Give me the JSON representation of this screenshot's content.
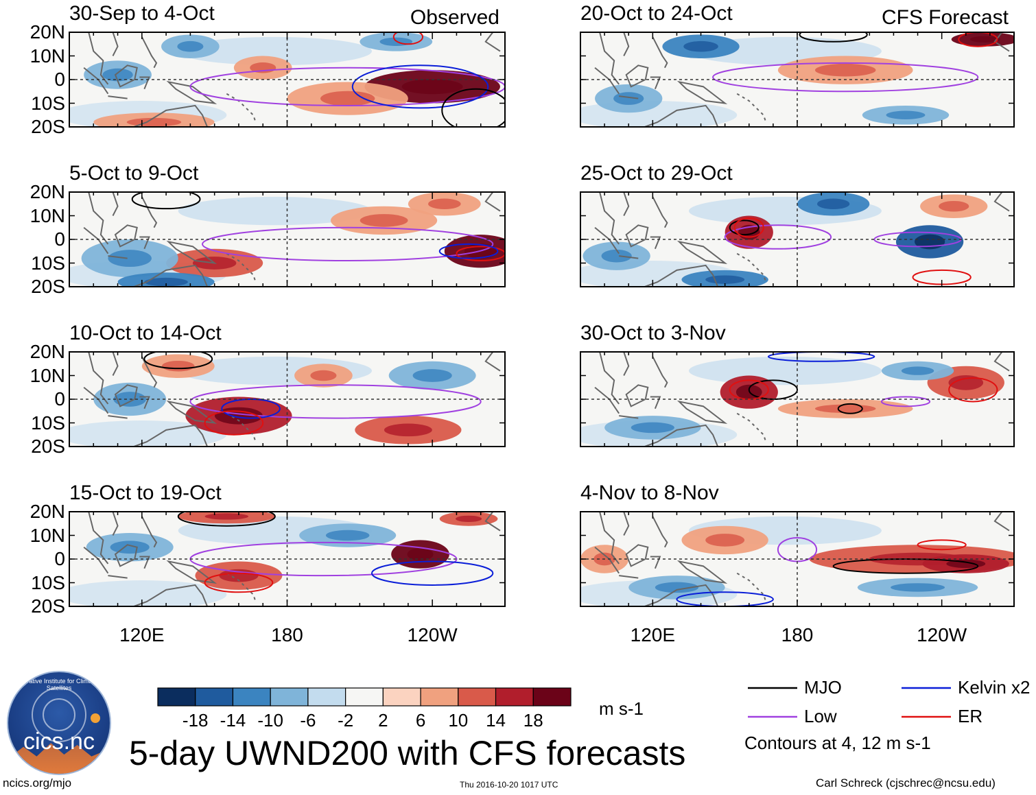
{
  "figure": {
    "main_title": "5-day UWND200 with CFS forecasts",
    "observed_tag": "Observed",
    "forecast_tag": "CFS Forecast",
    "url": "ncics.org/mjo",
    "timestamp": "Thu 2016-10-20 1017 UTC",
    "author": "Carl Schreck (cjschrec@ncsu.edu)",
    "logo_text": "cics.nc",
    "logo_arc_text": "Cooperative Institute for Climate and Satellites"
  },
  "chart_data": {
    "type": "heatmap",
    "variable": "UWND200",
    "units": "m s-1",
    "yticks": [
      "20N",
      "10N",
      "0",
      "10S",
      "20S"
    ],
    "xticks": [
      "120E",
      "180",
      "120W"
    ],
    "lat_range": [
      -20,
      20
    ],
    "lon_range": [
      90,
      270
    ],
    "colorbar": {
      "levels": [
        -18,
        -14,
        -10,
        -6,
        -2,
        2,
        6,
        10,
        14,
        18
      ],
      "labels": [
        "-18",
        "-14",
        "-10",
        "-6",
        "-2",
        "2",
        "6",
        "10",
        "14",
        "18"
      ],
      "colors": [
        "#0b2d5e",
        "#1f5b9e",
        "#3b84c0",
        "#7fb4d9",
        "#c3dcee",
        "#f6f6f4",
        "#fbd3c0",
        "#f0a17f",
        "#d95a4a",
        "#b11e2c",
        "#6b0318"
      ],
      "unit": "m s-1"
    },
    "contour_note": "Contours at 4, 12 m s-1",
    "legend": [
      {
        "label": "MJO",
        "color": "#000000"
      },
      {
        "label": "Kelvin x2",
        "color": "#0a1ed8"
      },
      {
        "label": "Low",
        "color": "#a040e0"
      },
      {
        "label": "ER",
        "color": "#e01010"
      }
    ],
    "panels": [
      {
        "title": "30-Sep to 4-Oct",
        "tag": "Observed",
        "features": [
          {
            "lon": 240,
            "lat": -3,
            "rx": 28,
            "ry": 7,
            "level": 18
          },
          {
            "lon": 205,
            "lat": -8,
            "rx": 25,
            "ry": 7,
            "level": 6
          },
          {
            "lon": 140,
            "lat": 14,
            "rx": 12,
            "ry": 5,
            "level": -6
          },
          {
            "lon": 110,
            "lat": 2,
            "rx": 14,
            "ry": 6,
            "level": -6
          },
          {
            "lon": 125,
            "lat": -18,
            "rx": 25,
            "ry": 4,
            "level": 6
          },
          {
            "lon": 170,
            "lat": 5,
            "rx": 12,
            "ry": 5,
            "level": 6
          },
          {
            "lon": 225,
            "lat": 16,
            "rx": 15,
            "ry": 4,
            "level": -6
          }
        ],
        "contours": [
          {
            "type": "Low",
            "lon": 205,
            "lat": -3,
            "rx": 65,
            "ry": 8
          },
          {
            "type": "Kelvin",
            "lon": 235,
            "lat": -3,
            "rx": 28,
            "ry": 9
          },
          {
            "type": "MJO",
            "lon": 258,
            "lat": -13,
            "rx": 14,
            "ry": 9
          },
          {
            "type": "ER",
            "lon": 230,
            "lat": 18,
            "rx": 6,
            "ry": 3
          }
        ]
      },
      {
        "title": "5-Oct to 9-Oct",
        "features": [
          {
            "lon": 260,
            "lat": -5,
            "rx": 15,
            "ry": 7,
            "level": 18
          },
          {
            "lon": 150,
            "lat": -10,
            "rx": 20,
            "ry": 6,
            "level": 10
          },
          {
            "lon": 115,
            "lat": -8,
            "rx": 20,
            "ry": 8,
            "level": -6
          },
          {
            "lon": 220,
            "lat": 8,
            "rx": 22,
            "ry": 6,
            "level": 6
          },
          {
            "lon": 245,
            "lat": 15,
            "rx": 15,
            "ry": 5,
            "level": 6
          },
          {
            "lon": 130,
            "lat": -18,
            "rx": 20,
            "ry": 4,
            "level": -10
          }
        ],
        "contours": [
          {
            "type": "Low",
            "lon": 205,
            "lat": -2,
            "rx": 60,
            "ry": 7
          },
          {
            "type": "MJO",
            "lon": 130,
            "lat": 17,
            "rx": 14,
            "ry": 4
          },
          {
            "type": "ER",
            "lon": 260,
            "lat": -6,
            "rx": 10,
            "ry": 3
          },
          {
            "type": "Kelvin",
            "lon": 255,
            "lat": -5,
            "rx": 12,
            "ry": 3
          }
        ]
      },
      {
        "title": "10-Oct to 14-Oct",
        "features": [
          {
            "lon": 160,
            "lat": -7,
            "rx": 22,
            "ry": 8,
            "level": 14
          },
          {
            "lon": 230,
            "lat": -13,
            "rx": 22,
            "ry": 6,
            "level": 10
          },
          {
            "lon": 135,
            "lat": 14,
            "rx": 15,
            "ry": 5,
            "level": 6
          },
          {
            "lon": 115,
            "lat": 0,
            "rx": 15,
            "ry": 7,
            "level": -6
          },
          {
            "lon": 240,
            "lat": 10,
            "rx": 18,
            "ry": 6,
            "level": -6
          },
          {
            "lon": 195,
            "lat": 10,
            "rx": 12,
            "ry": 5,
            "level": 6
          }
        ],
        "contours": [
          {
            "type": "Low",
            "lon": 200,
            "lat": -1,
            "rx": 60,
            "ry": 7
          },
          {
            "type": "Kelvin",
            "lon": 165,
            "lat": -4,
            "rx": 12,
            "ry": 4
          },
          {
            "type": "MJO",
            "lon": 135,
            "lat": 17,
            "rx": 14,
            "ry": 4
          },
          {
            "type": "ER",
            "lon": 158,
            "lat": -10,
            "rx": 12,
            "ry": 5
          }
        ]
      },
      {
        "title": "15-Oct to 19-Oct",
        "features": [
          {
            "lon": 235,
            "lat": 2,
            "rx": 12,
            "ry": 6,
            "level": 18
          },
          {
            "lon": 160,
            "lat": -7,
            "rx": 18,
            "ry": 6,
            "level": 10
          },
          {
            "lon": 155,
            "lat": 18,
            "rx": 20,
            "ry": 3,
            "level": 10
          },
          {
            "lon": 255,
            "lat": 17,
            "rx": 12,
            "ry": 3,
            "level": 10
          },
          {
            "lon": 115,
            "lat": 5,
            "rx": 18,
            "ry": 6,
            "level": -6
          },
          {
            "lon": 205,
            "lat": 10,
            "rx": 20,
            "ry": 5,
            "level": -6
          }
        ],
        "contours": [
          {
            "type": "Low",
            "lon": 195,
            "lat": 0,
            "rx": 55,
            "ry": 7
          },
          {
            "type": "MJO",
            "lon": 155,
            "lat": 18,
            "rx": 20,
            "ry": 4
          },
          {
            "type": "ER",
            "lon": 160,
            "lat": -10,
            "rx": 14,
            "ry": 4
          },
          {
            "type": "Kelvin",
            "lon": 240,
            "lat": -6,
            "rx": 25,
            "ry": 5
          }
        ]
      },
      {
        "title": "20-Oct to 24-Oct",
        "tag": "CFS Forecast",
        "features": [
          {
            "lon": 140,
            "lat": 14,
            "rx": 16,
            "ry": 5,
            "level": -10
          },
          {
            "lon": 258,
            "lat": 17,
            "rx": 14,
            "ry": 3,
            "level": 18
          },
          {
            "lon": 200,
            "lat": 4,
            "rx": 28,
            "ry": 6,
            "level": 6
          },
          {
            "lon": 110,
            "lat": -8,
            "rx": 14,
            "ry": 6,
            "level": -6
          },
          {
            "lon": 225,
            "lat": -15,
            "rx": 18,
            "ry": 4,
            "level": -6
          }
        ],
        "contours": [
          {
            "type": "Low",
            "lon": 200,
            "lat": 1,
            "rx": 55,
            "ry": 6
          },
          {
            "type": "ER",
            "lon": 255,
            "lat": 17,
            "rx": 8,
            "ry": 3
          },
          {
            "type": "MJO",
            "lon": 195,
            "lat": 19,
            "rx": 14,
            "ry": 3
          }
        ]
      },
      {
        "title": "25-Oct to 29-Oct",
        "features": [
          {
            "lon": 160,
            "lat": 3,
            "rx": 10,
            "ry": 7,
            "level": 14
          },
          {
            "lon": 235,
            "lat": -1,
            "rx": 14,
            "ry": 7,
            "level": -14
          },
          {
            "lon": 195,
            "lat": 15,
            "rx": 15,
            "ry": 5,
            "level": -10
          },
          {
            "lon": 150,
            "lat": -17,
            "rx": 18,
            "ry": 4,
            "level": -10
          },
          {
            "lon": 105,
            "lat": -7,
            "rx": 14,
            "ry": 6,
            "level": -6
          },
          {
            "lon": 245,
            "lat": 14,
            "rx": 14,
            "ry": 5,
            "level": 6
          }
        ],
        "contours": [
          {
            "type": "Low",
            "lon": 172,
            "lat": 1,
            "rx": 22,
            "ry": 5
          },
          {
            "type": "Low",
            "lon": 230,
            "lat": 0,
            "rx": 18,
            "ry": 3
          },
          {
            "type": "MJO",
            "lon": 158,
            "lat": 5,
            "rx": 6,
            "ry": 3
          },
          {
            "type": "ER",
            "lon": 160,
            "lat": 5,
            "rx": 6,
            "ry": 4
          },
          {
            "type": "ER",
            "lon": 240,
            "lat": -16,
            "rx": 12,
            "ry": 3
          }
        ]
      },
      {
        "title": "30-Oct to 3-Nov",
        "features": [
          {
            "lon": 160,
            "lat": 3,
            "rx": 12,
            "ry": 7,
            "level": 14
          },
          {
            "lon": 250,
            "lat": 7,
            "rx": 16,
            "ry": 7,
            "level": 10
          },
          {
            "lon": 200,
            "lat": -4,
            "rx": 28,
            "ry": 4,
            "level": 6
          },
          {
            "lon": 120,
            "lat": -12,
            "rx": 20,
            "ry": 5,
            "level": -6
          },
          {
            "lon": 230,
            "lat": 12,
            "rx": 15,
            "ry": 4,
            "level": -6
          }
        ],
        "contours": [
          {
            "type": "MJO",
            "lon": 170,
            "lat": 4,
            "rx": 10,
            "ry": 4
          },
          {
            "type": "MJO",
            "lon": 202,
            "lat": -4,
            "rx": 5,
            "ry": 2
          },
          {
            "type": "ER",
            "lon": 160,
            "lat": 4,
            "rx": 8,
            "ry": 4
          },
          {
            "type": "ER",
            "lon": 253,
            "lat": 4,
            "rx": 10,
            "ry": 5
          },
          {
            "type": "Low",
            "lon": 225,
            "lat": -1,
            "rx": 10,
            "ry": 2
          },
          {
            "type": "Kelvin",
            "lon": 190,
            "lat": 18,
            "rx": 22,
            "ry": 2
          }
        ]
      },
      {
        "title": "4-Nov to 8-Nov",
        "features": [
          {
            "lon": 230,
            "lat": 0,
            "rx": 45,
            "ry": 6,
            "level": 10
          },
          {
            "lon": 250,
            "lat": -2,
            "rx": 18,
            "ry": 4,
            "level": 14
          },
          {
            "lon": 150,
            "lat": 8,
            "rx": 18,
            "ry": 6,
            "level": 6
          },
          {
            "lon": 100,
            "lat": 0,
            "rx": 10,
            "ry": 6,
            "level": 6
          },
          {
            "lon": 130,
            "lat": -12,
            "rx": 20,
            "ry": 5,
            "level": -6
          },
          {
            "lon": 230,
            "lat": -12,
            "rx": 25,
            "ry": 4,
            "level": -6
          }
        ],
        "contours": [
          {
            "type": "MJO",
            "lon": 225,
            "lat": -3,
            "rx": 30,
            "ry": 3
          },
          {
            "type": "Low",
            "lon": 180,
            "lat": 4,
            "rx": 8,
            "ry": 5
          },
          {
            "type": "ER",
            "lon": 240,
            "lat": 6,
            "rx": 10,
            "ry": 2
          },
          {
            "type": "Kelvin",
            "lon": 150,
            "lat": -17,
            "rx": 20,
            "ry": 3
          }
        ]
      }
    ]
  }
}
